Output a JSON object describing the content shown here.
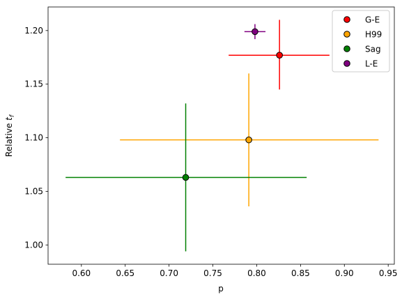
{
  "chart_data": {
    "type": "scatter",
    "xlabel": "p",
    "ylabel": "Relative",
    "ylabel_sub": "f",
    "ylabel_var": "t",
    "xlim": [
      0.562,
      0.957
    ],
    "ylim": [
      0.982,
      1.222
    ],
    "x_ticks": [
      0.6,
      0.65,
      0.7,
      0.75,
      0.8,
      0.85,
      0.9,
      0.95
    ],
    "x_tick_labels": [
      "0.60",
      "0.65",
      "0.70",
      "0.75",
      "0.80",
      "0.85",
      "0.90",
      "0.95"
    ],
    "y_ticks": [
      1.0,
      1.05,
      1.1,
      1.15,
      1.2
    ],
    "y_tick_labels": [
      "1.00",
      "1.05",
      "1.10",
      "1.15",
      "1.20"
    ],
    "legend_position": "top-right",
    "series": [
      {
        "name": "G-E",
        "color": "#ff0000",
        "x": 0.826,
        "y": 1.177,
        "xerr": [
          0.058,
          0.057
        ],
        "yerr": [
          0.032,
          0.033
        ]
      },
      {
        "name": "H99",
        "color": "#ffa500",
        "x": 0.791,
        "y": 1.098,
        "xerr": [
          0.147,
          0.148
        ],
        "yerr": [
          0.062,
          0.062
        ]
      },
      {
        "name": "Sag",
        "color": "#008000",
        "x": 0.719,
        "y": 1.063,
        "xerr": [
          0.137,
          0.138
        ],
        "yerr": [
          0.069,
          0.069
        ]
      },
      {
        "name": "L-E",
        "color": "#800080",
        "x": 0.798,
        "y": 1.199,
        "xerr": [
          0.012,
          0.012
        ],
        "yerr": [
          0.007,
          0.007
        ]
      }
    ]
  }
}
